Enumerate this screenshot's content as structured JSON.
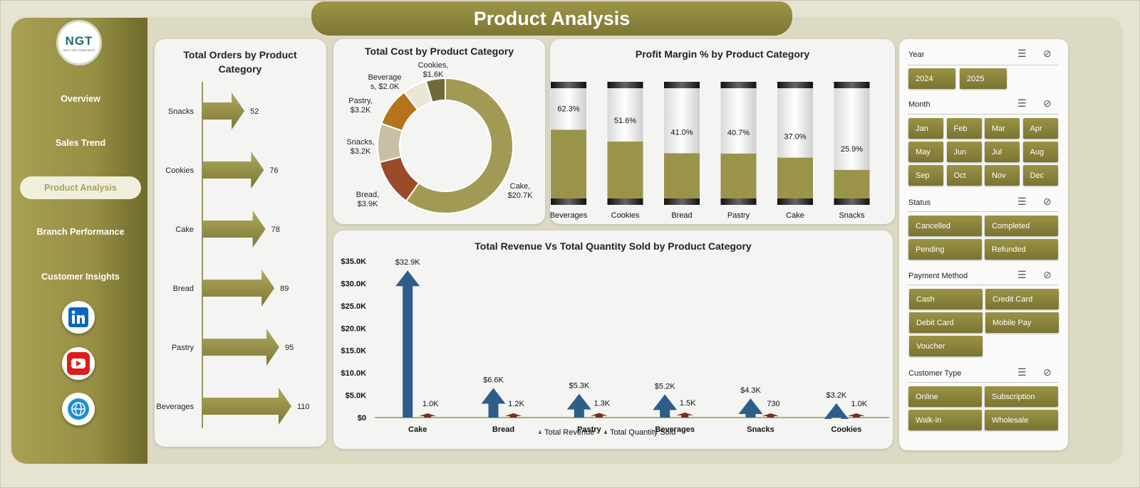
{
  "title": "Product Analysis",
  "logo": {
    "text": "NGT",
    "subtext": "NEXT GEN TEMPLATES"
  },
  "nav": [
    {
      "label": "Overview",
      "active": false
    },
    {
      "label": "Sales Trend",
      "active": false
    },
    {
      "label": "Product Analysis",
      "active": true
    },
    {
      "label": "Branch Performance",
      "active": false
    },
    {
      "label": "Customer Insights",
      "active": false
    }
  ],
  "social": [
    "linkedin-icon",
    "youtube-icon",
    "globe-icon"
  ],
  "colors": {
    "olive": "#8e8740",
    "olive_dark": "#6b6631",
    "blue": "#2e5d8a",
    "brown": "#7a2f1a"
  },
  "filters": {
    "year": {
      "title": "Year",
      "options": [
        "2024",
        "2025"
      ]
    },
    "month": {
      "title": "Month",
      "options": [
        "Jan",
        "Feb",
        "Mar",
        "Apr",
        "May",
        "Jun",
        "Jul",
        "Aug",
        "Sep",
        "Oct",
        "Nov",
        "Dec"
      ]
    },
    "status": {
      "title": "Status",
      "options": [
        "Cancelled",
        "Completed",
        "Pending",
        "Refunded"
      ]
    },
    "payment": {
      "title": "Payment Method",
      "options": [
        "Cash",
        "Credit Card",
        "Debit Card",
        "Mobile Pay",
        "Voucher"
      ]
    },
    "customer": {
      "title": "Customer Type",
      "options": [
        "Online",
        "Subscription",
        "Walk-in",
        "Wholesale"
      ]
    }
  },
  "chart_data": [
    {
      "type": "bar",
      "title": "Total Orders by Product Category",
      "categories": [
        "Snacks",
        "Cookies",
        "Cake",
        "Bread",
        "Pastry",
        "Beverages"
      ],
      "values": [
        52,
        76,
        78,
        89,
        95,
        110
      ],
      "orientation": "horizontal"
    },
    {
      "type": "pie",
      "title": "Total Cost by Product Category",
      "labels": [
        "Cake",
        "Bread",
        "Snacks",
        "Pastry",
        "Beverages",
        "Cookies"
      ],
      "values": [
        20.7,
        3.9,
        3.2,
        3.2,
        2.0,
        1.6
      ],
      "value_labels": [
        "Cake,\n$20.7K",
        "Bread,\n$3.9K",
        "Snacks,\n$3.2K",
        "Pastry,\n$3.2K",
        "Beverage\ns, $2.0K",
        "Cookies,\n$1.6K"
      ],
      "colors": [
        "#a19a55",
        "#9b4a2a",
        "#c8bfa6",
        "#b5731b",
        "#eae7d6",
        "#6f6a3a"
      ],
      "donut": true
    },
    {
      "type": "bar",
      "title": "Profit Margin % by Product Category",
      "categories": [
        "Beverages",
        "Cookies",
        "Bread",
        "Pastry",
        "Cake",
        "Snacks"
      ],
      "values": [
        62.3,
        51.6,
        41.0,
        40.7,
        37.0,
        25.9
      ],
      "value_labels": [
        "62.3%",
        "51.6%",
        "41.0%",
        "40.7%",
        "37.0%",
        "25.9%"
      ],
      "ylim": [
        0,
        100
      ]
    },
    {
      "type": "bar",
      "title": "Total Revenue Vs Total Quantity Sold by Product Category",
      "categories": [
        "Cake",
        "Bread",
        "Pastry",
        "Beverages",
        "Snacks",
        "Cookies"
      ],
      "series": [
        {
          "name": "Total Revenue",
          "values": [
            32.9,
            6.6,
            5.3,
            5.2,
            4.3,
            3.2
          ],
          "labels": [
            "$32.9K",
            "$6.6K",
            "$5.3K",
            "$5.2K",
            "$4.3K",
            "$3.2K"
          ]
        },
        {
          "name": "Total Quantity Sold",
          "values": [
            1.0,
            1.2,
            1.3,
            1.5,
            0.73,
            1.0
          ],
          "labels": [
            "1.0K",
            "1.2K",
            "1.3K",
            "1.5K",
            "730",
            "1.0K"
          ]
        }
      ],
      "y_ticks": [
        "$0",
        "$5.0K",
        "$10.0K",
        "$15.0K",
        "$20.0K",
        "$25.0K",
        "$30.0K",
        "$35.0K"
      ],
      "ylim": [
        0,
        35
      ],
      "legend": "bottom"
    }
  ]
}
